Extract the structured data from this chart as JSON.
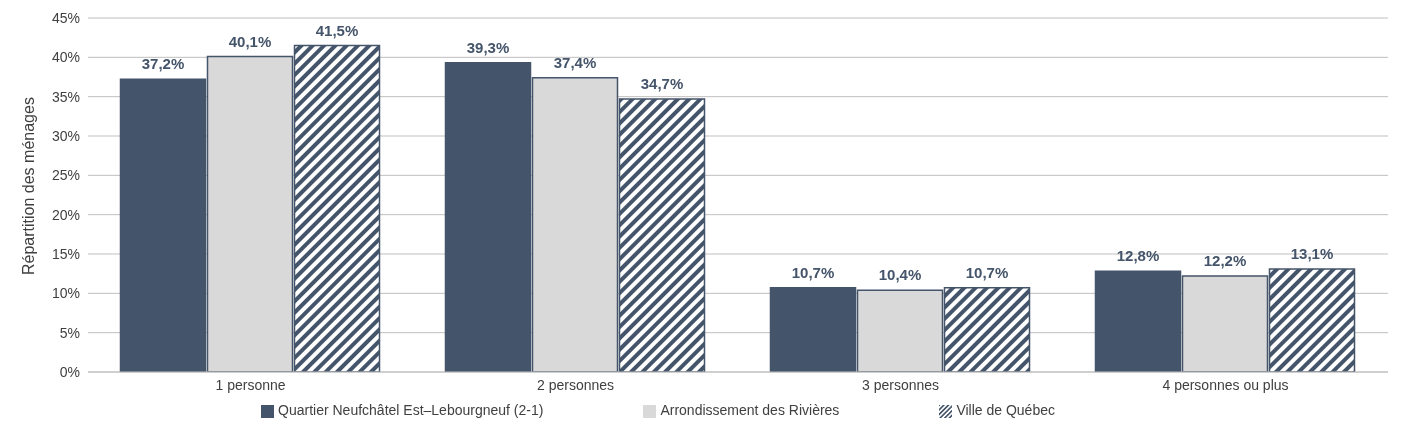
{
  "chart_data": {
    "type": "bar",
    "ylabel": "Répartition des ménages",
    "categories": [
      "1 personne",
      "2 personnes",
      "3 personnes",
      "4 personnes ou plus"
    ],
    "series": [
      {
        "name": "Quartier Neufchâtel Est–Lebourgneuf (2-1)",
        "color": "#44546a",
        "values": [
          37.2,
          39.3,
          10.7,
          12.8
        ],
        "value_labels": [
          "37,2%",
          "39,3%",
          "10,7%",
          "12,8%"
        ]
      },
      {
        "name": "Arrondissement des Rivières",
        "color": "#d9d9d9",
        "values": [
          40.1,
          37.4,
          10.4,
          12.2
        ],
        "value_labels": [
          "40,1%",
          "37,4%",
          "10,4%",
          "12,2%"
        ]
      },
      {
        "name": "Ville de Québec",
        "color": "#44546a",
        "values": [
          41.5,
          34.7,
          10.7,
          13.1
        ],
        "value_labels": [
          "41,5%",
          "34,7%",
          "10,7%",
          "13,1%"
        ]
      }
    ],
    "ylim": [
      0,
      45
    ],
    "yticks": [
      {
        "value": 0,
        "label": "0%"
      },
      {
        "value": 5,
        "label": "5%"
      },
      {
        "value": 10,
        "label": "10%"
      },
      {
        "value": 15,
        "label": "15%"
      },
      {
        "value": 20,
        "label": "20%"
      },
      {
        "value": 25,
        "label": "25%"
      },
      {
        "value": 30,
        "label": "30%"
      },
      {
        "value": 35,
        "label": "35%"
      },
      {
        "value": 40,
        "label": "40%"
      },
      {
        "value": 45,
        "label": "45%"
      }
    ],
    "grid": "y",
    "legend": "bottom"
  }
}
